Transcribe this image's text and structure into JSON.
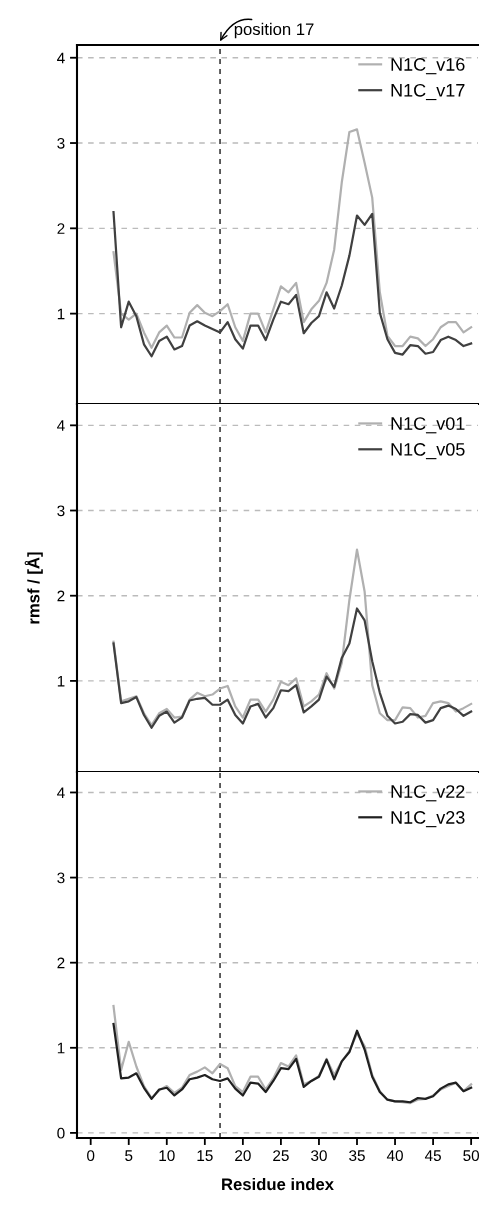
{
  "chart_data": [
    {
      "type": "line",
      "annotations": [
        "position 17"
      ],
      "x": [
        3,
        4,
        5,
        6,
        7,
        8,
        9,
        10,
        11,
        12,
        13,
        14,
        15,
        16,
        17,
        18,
        19,
        20,
        21,
        22,
        23,
        24,
        25,
        26,
        27,
        28,
        29,
        30,
        31,
        32,
        33,
        34,
        35,
        36,
        37,
        38,
        39,
        40,
        41,
        42,
        43,
        44,
        45,
        46,
        47,
        48,
        49,
        50
      ],
      "series": [
        {
          "name": "N1C_v16",
          "color": "#b0b0b0",
          "values": [
            1.72,
            1.0,
            0.93,
            1.0,
            0.78,
            0.6,
            0.78,
            0.86,
            0.72,
            0.72,
            1.01,
            1.1,
            1.01,
            0.97,
            1.03,
            1.11,
            0.84,
            0.68,
            1.0,
            1.0,
            0.78,
            1.05,
            1.32,
            1.25,
            1.36,
            0.9,
            1.05,
            1.15,
            1.36,
            1.75,
            2.54,
            3.13,
            3.16,
            2.77,
            2.36,
            1.25,
            0.74,
            0.62,
            0.62,
            0.73,
            0.71,
            0.62,
            0.7,
            0.84,
            0.9,
            0.9,
            0.78,
            0.84
          ]
        },
        {
          "name": "N1C_v17",
          "color": "#404040",
          "values": [
            2.19,
            0.84,
            1.14,
            0.97,
            0.64,
            0.5,
            0.68,
            0.73,
            0.58,
            0.62,
            0.86,
            0.91,
            0.86,
            0.82,
            0.78,
            0.9,
            0.7,
            0.59,
            0.86,
            0.86,
            0.69,
            0.93,
            1.14,
            1.11,
            1.22,
            0.77,
            0.89,
            0.97,
            1.25,
            1.06,
            1.33,
            1.68,
            2.15,
            2.04,
            2.17,
            1.01,
            0.7,
            0.54,
            0.52,
            0.63,
            0.62,
            0.53,
            0.55,
            0.69,
            0.73,
            0.69,
            0.62,
            0.65
          ]
        }
      ],
      "xlim": [
        -1.8,
        50.9
      ],
      "xticks": [
        0,
        5,
        10,
        15,
        20,
        25,
        30,
        35,
        40,
        45,
        50
      ],
      "ylim": [
        -0.06,
        4.15
      ],
      "yticks": [
        1,
        2,
        3,
        4
      ],
      "tick_labels": "y",
      "grid": "y",
      "legend": "top right",
      "ref_lines": [
        {
          "axis": "x",
          "value": 17,
          "color": "#404040",
          "line_style": "dashed"
        }
      ]
    },
    {
      "type": "line",
      "ylabel": "rmsf / [Å]",
      "x": [
        3,
        4,
        5,
        6,
        7,
        8,
        9,
        10,
        11,
        12,
        13,
        14,
        15,
        16,
        17,
        18,
        19,
        20,
        21,
        22,
        23,
        24,
        25,
        26,
        27,
        28,
        29,
        30,
        31,
        32,
        33,
        34,
        35,
        36,
        37,
        38,
        39,
        40,
        41,
        42,
        43,
        44,
        45,
        46,
        47,
        48,
        49,
        50
      ],
      "series": [
        {
          "name": "N1C_v01",
          "color": "#b0b0b0",
          "values": [
            1.46,
            0.76,
            0.79,
            0.82,
            0.62,
            0.48,
            0.62,
            0.67,
            0.57,
            0.58,
            0.78,
            0.86,
            0.82,
            0.84,
            0.91,
            0.94,
            0.7,
            0.57,
            0.78,
            0.78,
            0.64,
            0.78,
            0.99,
            0.95,
            1.03,
            0.7,
            0.76,
            0.84,
            1.09,
            0.91,
            1.21,
            1.95,
            2.54,
            2.05,
            0.95,
            0.62,
            0.54,
            0.54,
            0.69,
            0.68,
            0.57,
            0.59,
            0.74,
            0.76,
            0.74,
            0.64,
            0.68,
            0.73
          ]
        },
        {
          "name": "N1C_v05",
          "color": "#404040",
          "values": [
            1.44,
            0.74,
            0.76,
            0.81,
            0.6,
            0.45,
            0.59,
            0.64,
            0.51,
            0.57,
            0.77,
            0.79,
            0.8,
            0.72,
            0.72,
            0.78,
            0.6,
            0.5,
            0.7,
            0.73,
            0.57,
            0.68,
            0.89,
            0.88,
            0.95,
            0.63,
            0.7,
            0.78,
            1.05,
            0.93,
            1.27,
            1.44,
            1.85,
            1.71,
            1.23,
            0.86,
            0.59,
            0.5,
            0.52,
            0.61,
            0.6,
            0.51,
            0.54,
            0.68,
            0.71,
            0.67,
            0.59,
            0.64
          ]
        }
      ],
      "xlim": [
        -1.8,
        50.9
      ],
      "xticks": [
        0,
        5,
        10,
        15,
        20,
        25,
        30,
        35,
        40,
        45,
        50
      ],
      "ylim": [
        -0.07,
        4.25
      ],
      "yticks": [
        1,
        2,
        3,
        4
      ],
      "tick_labels": "y",
      "grid": "y",
      "legend": "top right",
      "ref_lines": [
        {
          "axis": "x",
          "value": 17,
          "color": "#404040",
          "line_style": "dashed"
        }
      ]
    },
    {
      "type": "line",
      "xlabel": "Residue index",
      "x": [
        3,
        4,
        5,
        6,
        7,
        8,
        9,
        10,
        11,
        12,
        13,
        14,
        15,
        16,
        17,
        18,
        19,
        20,
        21,
        22,
        23,
        24,
        25,
        26,
        27,
        28,
        29,
        30,
        31,
        32,
        33,
        34,
        35,
        36,
        37,
        38,
        39,
        40,
        41,
        42,
        43,
        44,
        45,
        46,
        47,
        48,
        49,
        50
      ],
      "series": [
        {
          "name": "N1C_v22",
          "color": "#b0b0b0",
          "values": [
            1.49,
            0.74,
            1.07,
            0.78,
            0.55,
            0.41,
            0.5,
            0.55,
            0.47,
            0.53,
            0.68,
            0.72,
            0.77,
            0.7,
            0.81,
            0.76,
            0.55,
            0.48,
            0.66,
            0.66,
            0.51,
            0.64,
            0.82,
            0.78,
            0.91,
            0.57,
            0.61,
            0.67,
            0.87,
            0.68,
            0.84,
            0.96,
            1.17,
            1.02,
            0.68,
            0.49,
            0.39,
            0.37,
            0.36,
            0.35,
            0.39,
            0.4,
            0.44,
            0.51,
            0.55,
            0.59,
            0.49,
            0.57
          ]
        },
        {
          "name": "N1C_v23",
          "color": "#202020",
          "values": [
            1.28,
            0.64,
            0.65,
            0.7,
            0.53,
            0.4,
            0.51,
            0.53,
            0.44,
            0.51,
            0.63,
            0.65,
            0.68,
            0.63,
            0.61,
            0.64,
            0.52,
            0.44,
            0.59,
            0.58,
            0.48,
            0.61,
            0.76,
            0.75,
            0.87,
            0.54,
            0.61,
            0.66,
            0.86,
            0.63,
            0.84,
            0.95,
            1.2,
            0.98,
            0.66,
            0.48,
            0.39,
            0.37,
            0.37,
            0.36,
            0.41,
            0.4,
            0.43,
            0.52,
            0.57,
            0.59,
            0.49,
            0.53
          ]
        }
      ],
      "xlim": [
        -1.8,
        50.9
      ],
      "xticks": [
        0,
        5,
        10,
        15,
        20,
        25,
        30,
        35,
        40,
        45,
        50
      ],
      "ylim": [
        -0.06,
        4.24
      ],
      "yticks": [
        0,
        1,
        2,
        3,
        4
      ],
      "grid": "y",
      "legend": "top right",
      "ref_lines": [
        {
          "axis": "x",
          "value": 17,
          "color": "#404040",
          "line_style": "dashed"
        }
      ]
    }
  ]
}
